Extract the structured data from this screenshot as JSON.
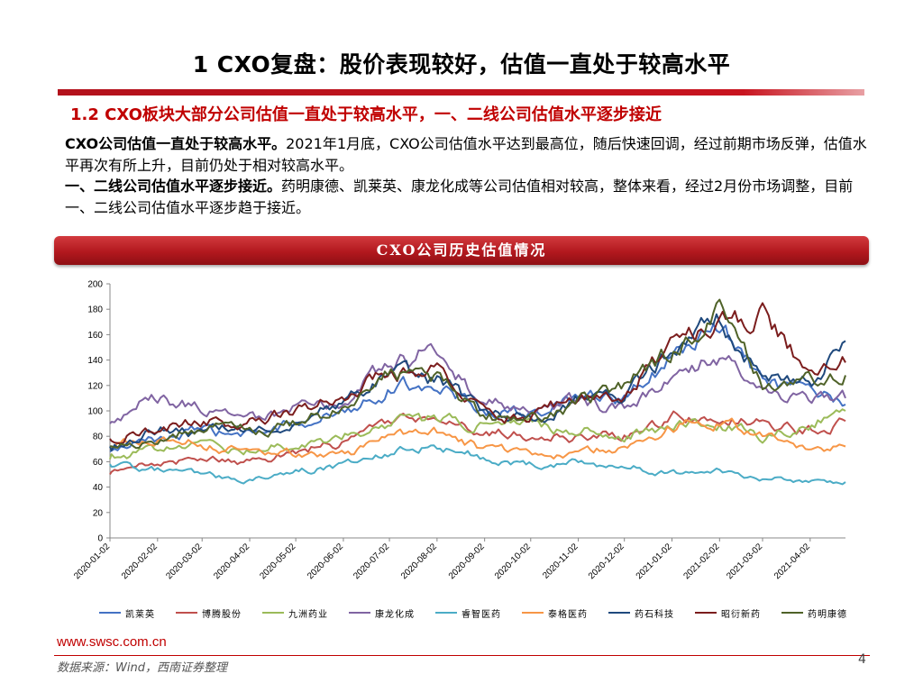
{
  "header": {
    "title": "1 CXO复盘：股价表现较好，估值一直处于较高水平",
    "subtitle": "1.2 CXO板块大部分公司估值一直处于较高水平，一、二线公司估值水平逐步接近"
  },
  "body": {
    "para1_bold": "CXO公司估值一直处于较高水平。",
    "para1_text": "2021年1月底，CXO公司估值水平达到最高位，随后快速回调，经过前期市场反弹，估值水平再次有所上升，目前仍处于相对较高水平。",
    "para2_bold": "一、二线公司估值水平逐步接近。",
    "para2_text": "药明康德、凯莱英、康龙化成等公司估值相对较高，整体来看，经过2月份市场调整，目前一、二线公司估值水平逐步趋于接近。"
  },
  "banner": {
    "title": "CXO公司历史估值情况"
  },
  "footer": {
    "url": "www.swsc.com.cn",
    "source": "数据来源：Wind，西南证券整理",
    "page": "4"
  },
  "chart_data": {
    "type": "line",
    "title": "CXO公司历史估值情况",
    "xlabel": "",
    "ylabel": "",
    "ylim": [
      0,
      200
    ],
    "yticks": [
      0,
      20,
      40,
      60,
      80,
      100,
      120,
      140,
      160,
      180,
      200
    ],
    "x_ticks": [
      "2020-01-02",
      "2020-02-02",
      "2020-03-02",
      "2020-04-02",
      "2020-05-02",
      "2020-06-02",
      "2020-07-02",
      "2020-08-02",
      "2020-09-02",
      "2020-10-02",
      "2020-11-02",
      "2020-12-02",
      "2021-01-02",
      "2021-02-02",
      "2021-03-02",
      "2021-04-02"
    ],
    "x": [
      "2020-01-02",
      "2020-02-02",
      "2020-03-02",
      "2020-04-02",
      "2020-05-02",
      "2020-06-02",
      "2020-07-02",
      "2020-08-02",
      "2020-09-02",
      "2020-10-02",
      "2020-11-02",
      "2020-12-02",
      "2021-01-02",
      "2021-02-02",
      "2021-03-02",
      "2021-04-02",
      "2021-04-25"
    ],
    "grid": false,
    "legend_position": "bottom",
    "series": [
      {
        "name": "凯莱英",
        "color": "#4472c4",
        "values": [
          68,
          78,
          84,
          80,
          90,
          100,
          118,
          122,
          100,
          98,
          108,
          110,
          140,
          168,
          122,
          112,
          105
        ]
      },
      {
        "name": "博腾股份",
        "color": "#c0504d",
        "values": [
          50,
          60,
          62,
          60,
          68,
          75,
          90,
          96,
          82,
          82,
          78,
          80,
          95,
          100,
          90,
          84,
          92
        ]
      },
      {
        "name": "九洲药业",
        "color": "#9bbb59",
        "values": [
          62,
          70,
          72,
          70,
          74,
          80,
          92,
          92,
          88,
          88,
          86,
          82,
          88,
          90,
          80,
          90,
          100
        ]
      },
      {
        "name": "康龙化成",
        "color": "#8064a2",
        "values": [
          90,
          112,
          102,
          92,
          102,
          108,
          135,
          150,
          108,
          98,
          108,
          100,
          130,
          145,
          120,
          108,
          110
        ]
      },
      {
        "name": "睿智医药",
        "color": "#4bacc6",
        "values": [
          58,
          54,
          50,
          46,
          52,
          56,
          68,
          72,
          64,
          58,
          60,
          56,
          52,
          52,
          46,
          44,
          44
        ]
      },
      {
        "name": "泰格医药",
        "color": "#f79646",
        "values": [
          70,
          80,
          74,
          68,
          66,
          64,
          78,
          84,
          70,
          66,
          66,
          72,
          88,
          90,
          82,
          72,
          72
        ]
      },
      {
        "name": "药石科技",
        "color": "#1f497d",
        "values": [
          72,
          86,
          82,
          88,
          92,
          110,
          128,
          124,
          100,
          92,
          110,
          108,
          150,
          172,
          128,
          122,
          155
        ]
      },
      {
        "name": "昭衍新药",
        "color": "#7b1d1d",
        "values": [
          78,
          88,
          92,
          90,
          100,
          112,
          132,
          130,
          100,
          94,
          112,
          110,
          155,
          165,
          178,
          130,
          138
        ]
      },
      {
        "name": "药明康德",
        "color": "#4f6228",
        "values": [
          72,
          78,
          86,
          84,
          90,
          102,
          130,
          125,
          96,
          92,
          106,
          118,
          148,
          180,
          118,
          125,
          128
        ]
      }
    ]
  }
}
